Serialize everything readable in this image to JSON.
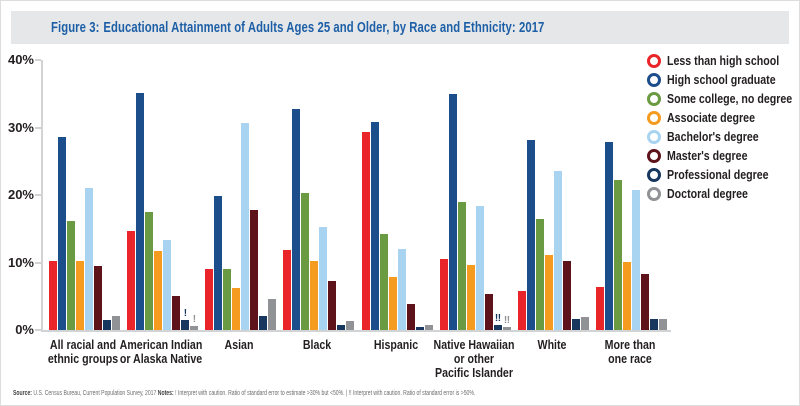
{
  "figure": {
    "title_label": "Figure 3:",
    "title_text": "Educational Attainment of Adults Ages 25 and Older, by Race and Ethnicity: 2017"
  },
  "footer": {
    "source_label": "Source:",
    "source_text": " U.S. Census Bureau, Current Population Survey, 2017 ",
    "notes_label": "Notes:",
    "notes_text": " ! Interpret with caution. Ratio of standard error to estimate >30% but <50%.  |  !! Interpret with caution. Ratio of standard error is >50%."
  },
  "colors": {
    "title_blue": "#1d5fa7",
    "banner_gray": "#e6e7e8",
    "axis_gray": "#d1d3d4",
    "note_gray": "#6d6e71"
  },
  "chart_data": {
    "type": "bar",
    "title": "Educational Attainment of Adults Ages 25 and Older, by Race and Ethnicity: 2017",
    "xlabel": "",
    "ylabel": "",
    "ylim": [
      0,
      40
    ],
    "grid": false,
    "legend_position": "right",
    "yticks": [
      {
        "value": 0,
        "label": "0%"
      },
      {
        "value": 10,
        "label": "10%"
      },
      {
        "value": 20,
        "label": "20%"
      },
      {
        "value": 30,
        "label": "30%"
      },
      {
        "value": 40,
        "label": "40%"
      }
    ],
    "categories": [
      "All racial and ethnic groups",
      "American Indian or Alaska Native",
      "Asian",
      "Black",
      "Hispanic",
      "Native Hawaiian or other Pacific Islander",
      "White",
      "More than one race"
    ],
    "category_lines": [
      [
        "All racial and",
        "ethnic groups"
      ],
      [
        "American Indian",
        "or Alaska Native"
      ],
      [
        "Asian"
      ],
      [
        "Black"
      ],
      [
        "Hispanic"
      ],
      [
        "Native Hawaiian",
        "or other",
        "Pacific Islander"
      ],
      [
        "White"
      ],
      [
        "More than",
        "one race"
      ]
    ],
    "series": [
      {
        "name": "Less than high school",
        "color": "#e92529",
        "values": [
          10.3,
          14.7,
          9.0,
          11.8,
          29.3,
          10.6,
          5.8,
          6.4
        ]
      },
      {
        "name": "High school graduate",
        "color": "#1c4e8c",
        "values": [
          28.6,
          35.1,
          19.8,
          32.8,
          30.8,
          35.0,
          28.2,
          27.8
        ]
      },
      {
        "name": "Some college, no degree",
        "color": "#6a9a41",
        "values": [
          16.2,
          17.5,
          9.1,
          20.3,
          14.3,
          19.0,
          16.4,
          22.3
        ]
      },
      {
        "name": "Associate degree",
        "color": "#f59b20",
        "values": [
          10.2,
          11.7,
          6.2,
          10.2,
          7.8,
          9.7,
          11.1,
          10.1
        ]
      },
      {
        "name": "Bachelor's degree",
        "color": "#a8d3f1",
        "values": [
          21.1,
          13.3,
          30.6,
          15.2,
          12.0,
          18.4,
          23.6,
          20.8
        ]
      },
      {
        "name": "Master's degree",
        "color": "#5e1219",
        "values": [
          9.5,
          5.0,
          17.8,
          7.2,
          3.9,
          5.3,
          10.3,
          8.3
        ]
      },
      {
        "name": "Professional degree",
        "color": "#17375e",
        "values": [
          1.5,
          1.5,
          2.1,
          0.7,
          0.5,
          0.8,
          1.6,
          1.6
        ]
      },
      {
        "name": "Doctoral degree",
        "color": "#909295",
        "values": [
          2.1,
          0.6,
          4.6,
          1.3,
          0.7,
          0.5,
          1.9,
          1.6
        ]
      }
    ],
    "flags": [
      {
        "category_index": 1,
        "series_index": 6,
        "mark": "!"
      },
      {
        "category_index": 1,
        "series_index": 7,
        "mark": "!"
      },
      {
        "category_index": 5,
        "series_index": 6,
        "mark": "!!"
      },
      {
        "category_index": 5,
        "series_index": 7,
        "mark": "!!"
      }
    ]
  }
}
